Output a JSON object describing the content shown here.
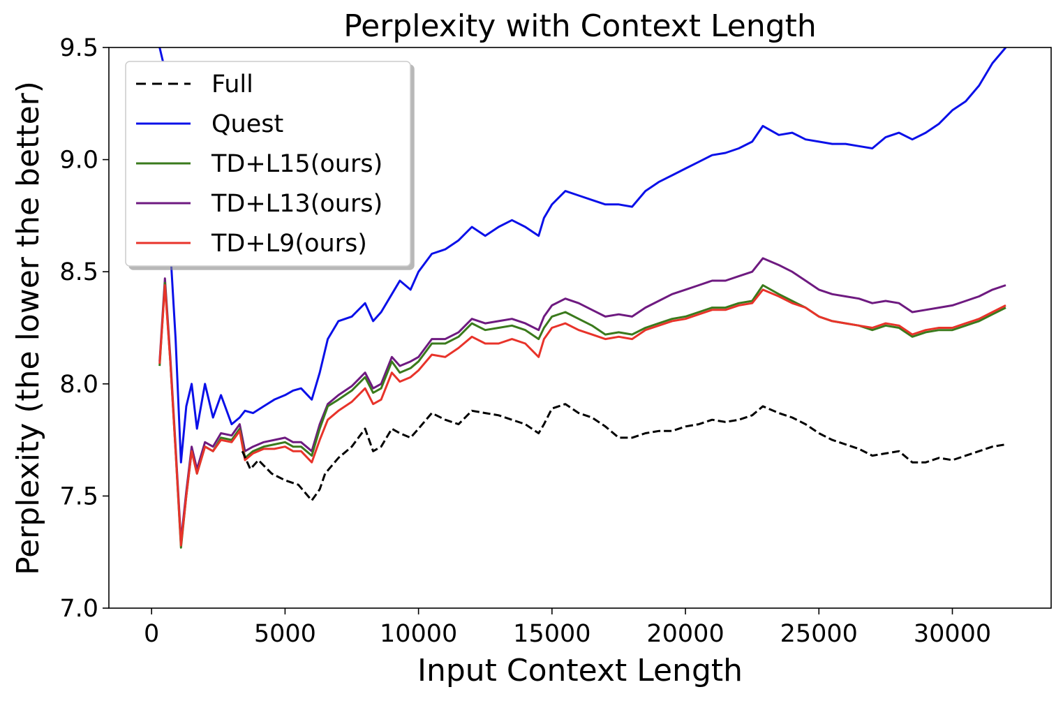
{
  "chart_data": {
    "type": "line",
    "title": "Perplexity with Context Length",
    "xlabel": "Input Context Length",
    "ylabel": "Perplexity (the lower the better)",
    "xlim": [
      -1600,
      33700
    ],
    "ylim": [
      7.0,
      9.5
    ],
    "xticks": [
      0,
      5000,
      10000,
      15000,
      20000,
      25000,
      30000
    ],
    "yticks": [
      7.0,
      7.5,
      8.0,
      8.5,
      9.0,
      9.5
    ],
    "xtick_labels": [
      "0",
      "5000",
      "10000",
      "15000",
      "20000",
      "25000",
      "30000"
    ],
    "ytick_labels": [
      "7.0",
      "7.5",
      "8.0",
      "8.5",
      "9.0",
      "9.5"
    ],
    "grid": false,
    "legend_position": "top-left",
    "series": [
      {
        "name": "Full",
        "color": "#000000",
        "dash": "dashed",
        "x": [
          3400,
          3700,
          4000,
          4500,
          5000,
          5500,
          6000,
          6300,
          6500,
          7000,
          7500,
          8000,
          8300,
          8600,
          9000,
          9300,
          9700,
          10000,
          10500,
          11000,
          11500,
          12000,
          12500,
          13000,
          13500,
          14000,
          14500,
          14700,
          15000,
          15500,
          16000,
          16500,
          17000,
          17500,
          18000,
          18500,
          19000,
          19500,
          20000,
          20500,
          21000,
          21500,
          22000,
          22500,
          22900,
          23500,
          24000,
          24500,
          25000,
          25500,
          26000,
          26500,
          27000,
          27500,
          28000,
          28500,
          29000,
          29500,
          30000,
          30500,
          31000,
          31500,
          32000
        ],
        "y": [
          7.7,
          7.62,
          7.66,
          7.6,
          7.57,
          7.55,
          7.48,
          7.53,
          7.6,
          7.67,
          7.72,
          7.8,
          7.7,
          7.72,
          7.8,
          7.78,
          7.76,
          7.8,
          7.87,
          7.84,
          7.82,
          7.88,
          7.87,
          7.86,
          7.84,
          7.82,
          7.78,
          7.82,
          7.89,
          7.91,
          7.87,
          7.85,
          7.81,
          7.76,
          7.76,
          7.78,
          7.79,
          7.79,
          7.81,
          7.82,
          7.84,
          7.83,
          7.84,
          7.86,
          7.9,
          7.87,
          7.85,
          7.82,
          7.78,
          7.75,
          7.73,
          7.71,
          7.68,
          7.69,
          7.7,
          7.65,
          7.65,
          7.67,
          7.66,
          7.68,
          7.7,
          7.72,
          7.73
        ]
      },
      {
        "name": "Quest",
        "color": "#0a10e8",
        "dash": "solid",
        "x": [
          300,
          500,
          700,
          900,
          1100,
          1300,
          1500,
          1700,
          2000,
          2300,
          2600,
          3000,
          3300,
          3500,
          3800,
          4200,
          4600,
          5000,
          5300,
          5600,
          6000,
          6300,
          6600,
          7000,
          7500,
          8000,
          8300,
          8600,
          9000,
          9300,
          9700,
          10000,
          10500,
          11000,
          11500,
          12000,
          12500,
          13000,
          13500,
          14000,
          14500,
          14700,
          15000,
          15500,
          16000,
          16500,
          17000,
          17500,
          18000,
          18500,
          19000,
          19500,
          20000,
          20500,
          21000,
          21500,
          22000,
          22500,
          22900,
          23500,
          24000,
          24500,
          25000,
          25500,
          26000,
          26500,
          27000,
          27500,
          28000,
          28500,
          29000,
          29500,
          30000,
          30500,
          31000,
          31500,
          32000
        ],
        "y": [
          9.5,
          9.4,
          8.6,
          8.2,
          7.65,
          7.9,
          8.0,
          7.8,
          8.0,
          7.85,
          7.95,
          7.82,
          7.85,
          7.88,
          7.87,
          7.9,
          7.93,
          7.95,
          7.97,
          7.98,
          7.93,
          8.05,
          8.2,
          8.28,
          8.3,
          8.36,
          8.28,
          8.32,
          8.4,
          8.46,
          8.42,
          8.5,
          8.58,
          8.6,
          8.64,
          8.7,
          8.66,
          8.7,
          8.73,
          8.7,
          8.66,
          8.74,
          8.8,
          8.86,
          8.84,
          8.82,
          8.8,
          8.8,
          8.79,
          8.86,
          8.9,
          8.93,
          8.96,
          8.99,
          9.02,
          9.03,
          9.05,
          9.08,
          9.15,
          9.11,
          9.12,
          9.09,
          9.08,
          9.07,
          9.07,
          9.06,
          9.05,
          9.1,
          9.12,
          9.09,
          9.12,
          9.16,
          9.22,
          9.26,
          9.33,
          9.43,
          9.5
        ]
      },
      {
        "name": "TD+L15(ours)",
        "color": "#3a7a1c",
        "dash": "solid",
        "x": [
          300,
          500,
          700,
          900,
          1100,
          1300,
          1500,
          1700,
          2000,
          2300,
          2600,
          3000,
          3300,
          3500,
          3800,
          4200,
          4600,
          5000,
          5300,
          5600,
          6000,
          6300,
          6600,
          7000,
          7500,
          8000,
          8300,
          8600,
          9000,
          9300,
          9700,
          10000,
          10500,
          11000,
          11500,
          12000,
          12500,
          13000,
          13500,
          14000,
          14500,
          14700,
          15000,
          15500,
          16000,
          16500,
          17000,
          17500,
          18000,
          18500,
          19000,
          19500,
          20000,
          20500,
          21000,
          21500,
          22000,
          22500,
          22900,
          23500,
          24000,
          24500,
          25000,
          25500,
          26000,
          26500,
          27000,
          27500,
          28000,
          28500,
          29000,
          29500,
          30000,
          30500,
          31000,
          31500,
          32000
        ],
        "y": [
          8.08,
          8.45,
          8.1,
          7.7,
          7.27,
          7.5,
          7.7,
          7.6,
          7.72,
          7.7,
          7.76,
          7.75,
          7.8,
          7.67,
          7.7,
          7.72,
          7.73,
          7.74,
          7.72,
          7.72,
          7.68,
          7.8,
          7.9,
          7.93,
          7.97,
          8.03,
          7.96,
          7.98,
          8.1,
          8.05,
          8.07,
          8.1,
          8.18,
          8.18,
          8.21,
          8.27,
          8.24,
          8.25,
          8.26,
          8.24,
          8.2,
          8.25,
          8.3,
          8.32,
          8.29,
          8.26,
          8.22,
          8.23,
          8.22,
          8.25,
          8.27,
          8.29,
          8.3,
          8.32,
          8.34,
          8.34,
          8.36,
          8.37,
          8.44,
          8.4,
          8.37,
          8.34,
          8.3,
          8.28,
          8.27,
          8.26,
          8.24,
          8.26,
          8.25,
          8.21,
          8.23,
          8.24,
          8.24,
          8.26,
          8.28,
          8.31,
          8.34
        ]
      },
      {
        "name": "TD+L13(ours)",
        "color": "#6e1a80",
        "dash": "solid",
        "x": [
          300,
          500,
          700,
          900,
          1100,
          1300,
          1500,
          1700,
          2000,
          2300,
          2600,
          3000,
          3300,
          3500,
          3800,
          4200,
          4600,
          5000,
          5300,
          5600,
          6000,
          6300,
          6600,
          7000,
          7500,
          8000,
          8300,
          8600,
          9000,
          9300,
          9700,
          10000,
          10500,
          11000,
          11500,
          12000,
          12500,
          13000,
          13500,
          14000,
          14500,
          14700,
          15000,
          15500,
          16000,
          16500,
          17000,
          17500,
          18000,
          18500,
          19000,
          19500,
          20000,
          20500,
          21000,
          21500,
          22000,
          22500,
          22900,
          23500,
          24000,
          24500,
          25000,
          25500,
          26000,
          26500,
          27000,
          27500,
          28000,
          28500,
          29000,
          29500,
          30000,
          30500,
          31000,
          31500,
          32000
        ],
        "y": [
          8.1,
          8.47,
          8.12,
          7.72,
          7.3,
          7.52,
          7.72,
          7.62,
          7.74,
          7.72,
          7.78,
          7.77,
          7.82,
          7.7,
          7.72,
          7.74,
          7.75,
          7.76,
          7.74,
          7.74,
          7.7,
          7.82,
          7.91,
          7.95,
          7.99,
          8.05,
          7.98,
          8.0,
          8.12,
          8.08,
          8.1,
          8.12,
          8.2,
          8.2,
          8.23,
          8.29,
          8.27,
          8.28,
          8.29,
          8.27,
          8.24,
          8.3,
          8.35,
          8.38,
          8.36,
          8.33,
          8.3,
          8.31,
          8.3,
          8.34,
          8.37,
          8.4,
          8.42,
          8.44,
          8.46,
          8.46,
          8.48,
          8.5,
          8.56,
          8.53,
          8.5,
          8.46,
          8.42,
          8.4,
          8.39,
          8.38,
          8.36,
          8.37,
          8.36,
          8.32,
          8.33,
          8.34,
          8.35,
          8.37,
          8.39,
          8.42,
          8.44
        ]
      },
      {
        "name": "TD+L9(ours)",
        "color": "#e8332a",
        "dash": "solid",
        "x": [
          300,
          500,
          700,
          900,
          1100,
          1300,
          1500,
          1700,
          2000,
          2300,
          2600,
          3000,
          3300,
          3500,
          3800,
          4200,
          4600,
          5000,
          5300,
          5600,
          6000,
          6300,
          6600,
          7000,
          7500,
          8000,
          8300,
          8600,
          9000,
          9300,
          9700,
          10000,
          10500,
          11000,
          11500,
          12000,
          12500,
          13000,
          13500,
          14000,
          14500,
          14700,
          15000,
          15500,
          16000,
          16500,
          17000,
          17500,
          18000,
          18500,
          19000,
          19500,
          20000,
          20500,
          21000,
          21500,
          22000,
          22500,
          22900,
          23500,
          24000,
          24500,
          25000,
          25500,
          26000,
          26500,
          27000,
          27500,
          28000,
          28500,
          29000,
          29500,
          30000,
          30500,
          31000,
          31500,
          32000
        ],
        "y": [
          8.09,
          8.44,
          8.1,
          7.7,
          7.28,
          7.5,
          7.7,
          7.6,
          7.72,
          7.7,
          7.75,
          7.74,
          7.79,
          7.66,
          7.69,
          7.71,
          7.71,
          7.72,
          7.7,
          7.7,
          7.65,
          7.75,
          7.84,
          7.88,
          7.92,
          7.98,
          7.91,
          7.93,
          8.05,
          8.01,
          8.03,
          8.06,
          8.13,
          8.12,
          8.16,
          8.21,
          8.18,
          8.18,
          8.2,
          8.18,
          8.12,
          8.2,
          8.25,
          8.27,
          8.24,
          8.22,
          8.2,
          8.21,
          8.2,
          8.24,
          8.26,
          8.28,
          8.29,
          8.31,
          8.33,
          8.33,
          8.35,
          8.36,
          8.42,
          8.39,
          8.36,
          8.34,
          8.3,
          8.28,
          8.27,
          8.26,
          8.25,
          8.27,
          8.26,
          8.22,
          8.24,
          8.25,
          8.25,
          8.27,
          8.29,
          8.32,
          8.35
        ]
      }
    ]
  }
}
